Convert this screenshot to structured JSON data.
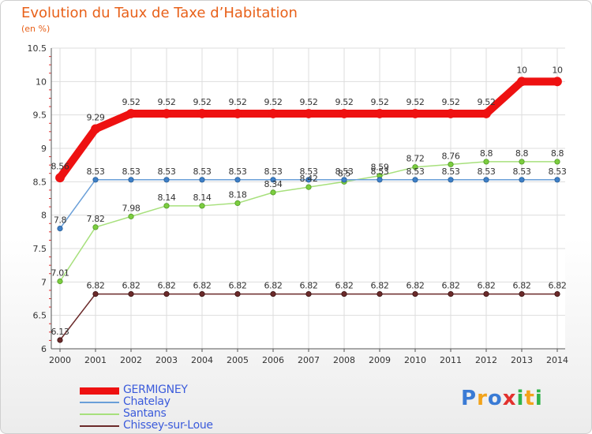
{
  "header": {
    "title": "Evolution du Taux de Taxe d’Habitation",
    "subtitle": "(en %)"
  },
  "brand": {
    "text": "Proxiti",
    "letters": [
      "P",
      "r",
      "o",
      "x",
      "i",
      "t",
      "i"
    ]
  },
  "chart_data": {
    "type": "line",
    "title": "Evolution du Taux de Taxe d’Habitation",
    "subtitle": "(en %)",
    "xlabel": "",
    "ylabel": "",
    "x": [
      2000,
      2001,
      2002,
      2003,
      2004,
      2005,
      2006,
      2007,
      2008,
      2009,
      2010,
      2011,
      2012,
      2013,
      2014
    ],
    "ylim": [
      6,
      10.5
    ],
    "yticks": [
      6,
      6.5,
      7,
      7.5,
      8,
      8.5,
      9,
      9.5,
      10,
      10.5
    ],
    "grid": true,
    "legend_position": "bottom-left",
    "series": [
      {
        "name": "GERMIGNEY",
        "color": "#ee1111",
        "values": [
          8.56,
          9.29,
          9.52,
          9.52,
          9.52,
          9.52,
          9.52,
          9.52,
          9.52,
          9.52,
          9.52,
          9.52,
          9.52,
          10,
          10
        ],
        "labels": [
          "8.56",
          "9.29",
          "9.52",
          "9.52",
          "9.52",
          "9.52",
          "9.52",
          "9.52",
          "9.52",
          "9.52",
          "9.52",
          "9.52",
          "9.52",
          "10",
          "10"
        ]
      },
      {
        "name": "Chatelay",
        "color": "#6a9fd8",
        "values": [
          7.8,
          8.53,
          8.53,
          8.53,
          8.53,
          8.53,
          8.53,
          8.53,
          8.53,
          8.53,
          8.53,
          8.53,
          8.53,
          8.53,
          8.53
        ],
        "labels": [
          "7.8",
          "8.53",
          "8.53",
          "8.53",
          "8.53",
          "8.53",
          "8.53",
          "8.53",
          "8.53",
          "8.53",
          "8.53",
          "8.53",
          "8.53",
          "8.53",
          "8.53"
        ]
      },
      {
        "name": "Santans",
        "color": "#a7e07c",
        "values": [
          7.01,
          7.82,
          7.98,
          8.14,
          8.14,
          8.18,
          8.34,
          8.42,
          8.5,
          8.59,
          8.72,
          8.76,
          8.8,
          8.8,
          8.8
        ],
        "labels": [
          "7.01",
          "7.82",
          "7.98",
          "8.14",
          "8.14",
          "8.18",
          "8.34",
          "8.42",
          "8.5",
          "8.59",
          "8.72",
          "8.76",
          "8.8",
          "8.8",
          "8.8"
        ]
      },
      {
        "name": "Chissey-sur-Loue",
        "color": "#6b2a2a",
        "values": [
          6.13,
          6.82,
          6.82,
          6.82,
          6.82,
          6.82,
          6.82,
          6.82,
          6.82,
          6.82,
          6.82,
          6.82,
          6.82,
          6.82,
          6.82
        ],
        "labels": [
          "6.13",
          "6.82",
          "6.82",
          "6.82",
          "6.82",
          "6.82",
          "6.82",
          "6.82",
          "6.82",
          "6.82",
          "6.82",
          "6.82",
          "6.82",
          "6.82",
          "6.82"
        ]
      }
    ]
  }
}
